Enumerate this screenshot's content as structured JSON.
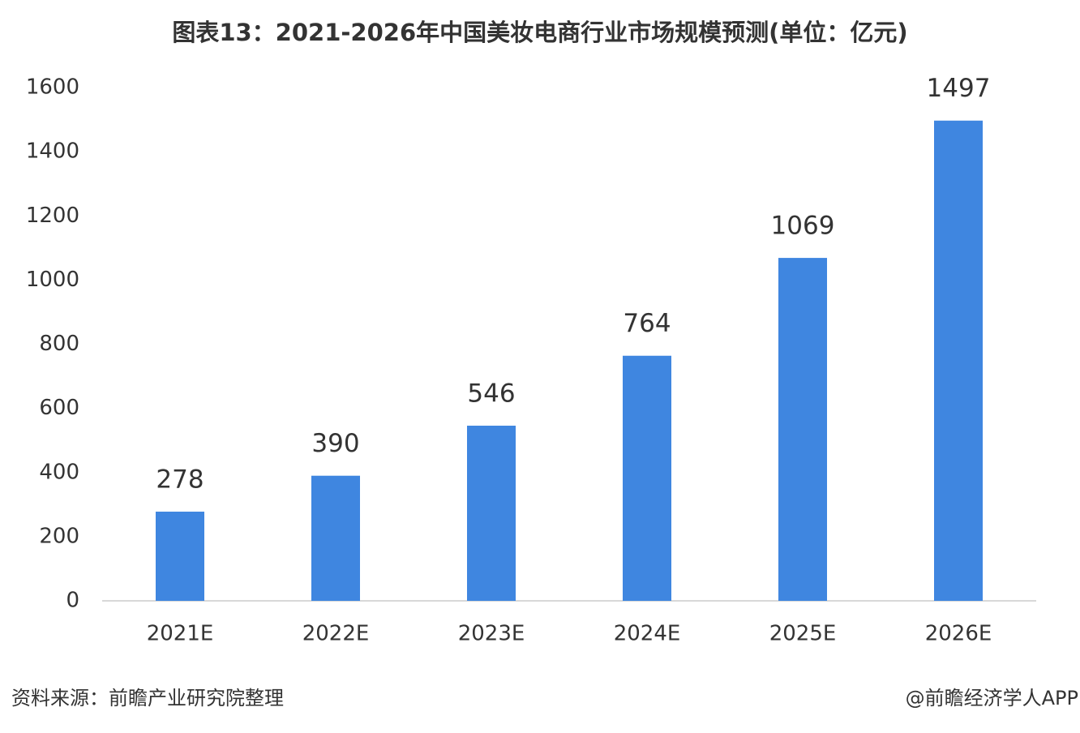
{
  "chart_data": {
    "type": "bar",
    "title": "图表13：2021-2026年中国美妆电商行业市场规模预测(单位：亿元)",
    "categories": [
      "2021E",
      "2022E",
      "2023E",
      "2024E",
      "2025E",
      "2026E"
    ],
    "values": [
      278,
      390,
      546,
      764,
      1069,
      1497
    ],
    "color": "#3f86e0",
    "ylim": [
      0,
      1600
    ],
    "yticks": [
      0,
      200,
      400,
      600,
      800,
      1000,
      1200,
      1400,
      1600
    ],
    "grid": false,
    "source": "资料来源：前瞻产业研究院整理",
    "credit": "@前瞻经济学人APP"
  }
}
